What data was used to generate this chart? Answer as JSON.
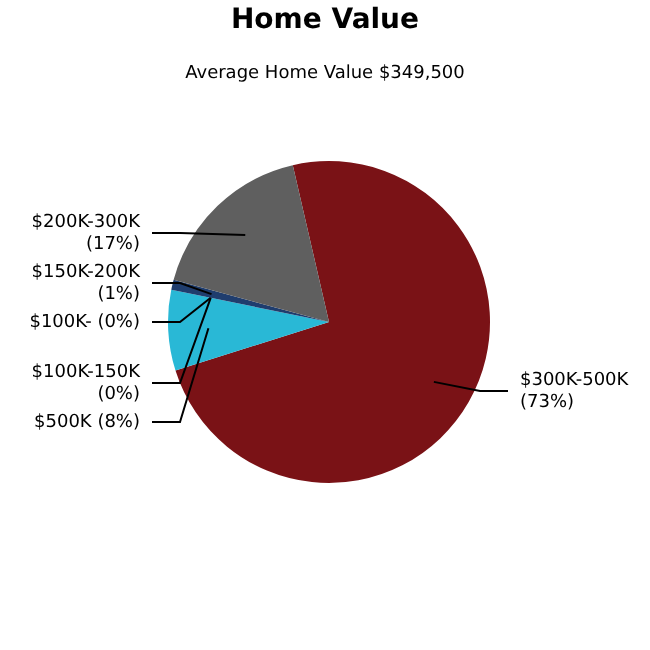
{
  "chart_data": {
    "type": "pie",
    "title": "Home Value",
    "subtitle": "Average Home Value  $349,500",
    "categories": [
      "$300K-500K",
      "$500K",
      "$100K-150K",
      "$100K-",
      "$150K-200K",
      "$200K-300K"
    ],
    "values": [
      73,
      8,
      0,
      0,
      1,
      17
    ],
    "value_labels": [
      "(73%)",
      "(8%)",
      "(0%)",
      "(0%)",
      "(1%)",
      "(17%)"
    ],
    "colors": [
      "#7a1216",
      "#29b8d6",
      "#4a90c0",
      "#2a5a8a",
      "#1f3d6e",
      "#5f5f5f"
    ],
    "legend": false
  }
}
